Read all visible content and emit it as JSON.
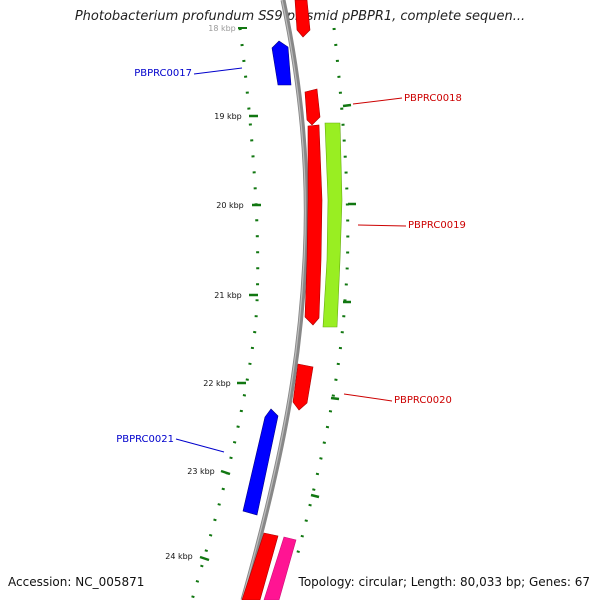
{
  "header": {
    "title": "Photobacterium profundum SS9 plasmid pPBPR1, complete sequen..."
  },
  "footer": {
    "accession": "Accession: NC_005871",
    "topology": "Topology: circular; Length: 80,033 bp; Genes: 67"
  },
  "ticks": [
    "18 kbp",
    "19 kbp",
    "20 kbp",
    "21 kbp",
    "22 kbp",
    "23 kbp",
    "24 kbp"
  ],
  "genes": [
    {
      "label": "PBPRC0017",
      "color": "#0000cc"
    },
    {
      "label": "PBPRC0018",
      "color": "#cc0000"
    },
    {
      "label": "PBPRC0019",
      "color": "#cc0000"
    },
    {
      "label": "PBPRC0020",
      "color": "#cc0000"
    },
    {
      "label": "PBPRC0021",
      "color": "#0000cc"
    }
  ],
  "colors": {
    "backbone": "#8a8a8a",
    "forward": "#ff0000",
    "reverse": "#0000ff",
    "other_gene": "#99ee22",
    "misc_gene": "#ff1493",
    "tick_marks": "#117711"
  }
}
